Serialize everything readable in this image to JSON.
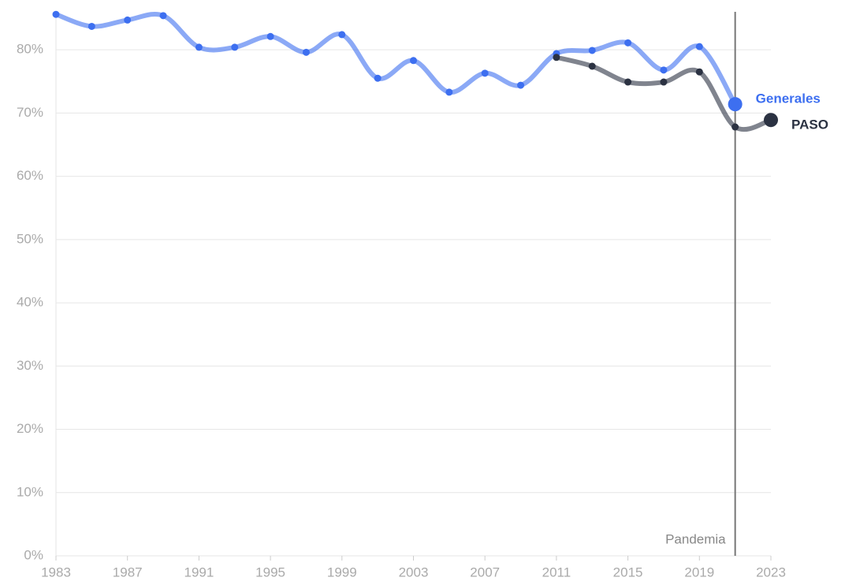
{
  "chart_data": {
    "type": "line",
    "xlim": [
      1983,
      2023
    ],
    "xticks": [
      1983,
      1987,
      1991,
      1995,
      1999,
      2003,
      2007,
      2011,
      2015,
      2019,
      2023
    ],
    "ylim": [
      0,
      86
    ],
    "yticks": [
      {
        "value": 0,
        "label": "0%"
      },
      {
        "value": 10,
        "label": "10%"
      },
      {
        "value": 20,
        "label": "20%"
      },
      {
        "value": 30,
        "label": "30%"
      },
      {
        "value": 40,
        "label": "40%"
      },
      {
        "value": 50,
        "label": "50%"
      },
      {
        "value": 60,
        "label": "60%"
      },
      {
        "value": 70,
        "label": "70%"
      },
      {
        "value": 80,
        "label": "80%"
      }
    ],
    "grid": true,
    "series": [
      {
        "name": "Generales",
        "color": "#3d6ff0",
        "x": [
          1983,
          1985,
          1987,
          1989,
          1991,
          1993,
          1995,
          1997,
          1999,
          2001,
          2003,
          2005,
          2007,
          2009,
          2011,
          2013,
          2015,
          2017,
          2019,
          2021
        ],
        "values": [
          85.6,
          83.7,
          84.7,
          85.4,
          80.4,
          80.4,
          82.1,
          79.6,
          82.4,
          75.5,
          78.3,
          73.3,
          76.3,
          74.4,
          79.4,
          79.9,
          81.1,
          76.8,
          80.5,
          71.4
        ]
      },
      {
        "name": "PASO",
        "color": "#2b3242",
        "x": [
          2011,
          2013,
          2015,
          2017,
          2019,
          2021,
          2023
        ],
        "values": [
          78.8,
          77.4,
          74.9,
          74.9,
          76.5,
          67.8,
          68.9
        ]
      }
    ],
    "annotations": [
      {
        "x": 2021,
        "label": "Pandemia"
      }
    ]
  }
}
